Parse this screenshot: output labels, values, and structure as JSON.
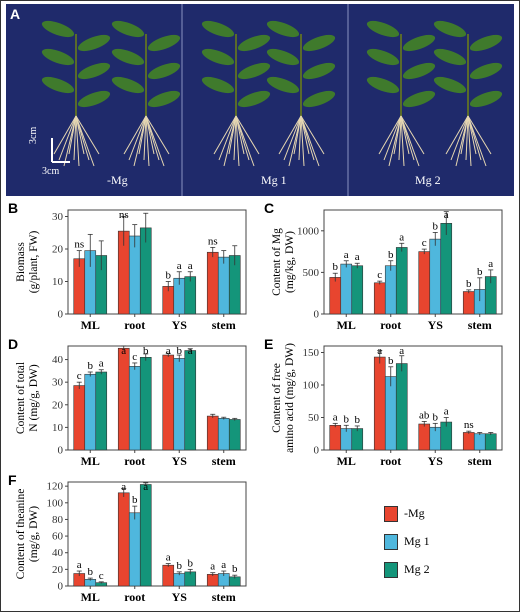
{
  "colors": {
    "mg0": "#e8452f",
    "mg1": "#4fb7dd",
    "mg2": "#14957a",
    "photo_bg": "#1f2a6b"
  },
  "panel_letters": [
    "A",
    "B",
    "C",
    "D",
    "E",
    "F"
  ],
  "photo": {
    "labels": [
      "-Mg",
      "Mg 1",
      "Mg 2"
    ],
    "scale_v": "3cm",
    "scale_h": "3cm"
  },
  "legend": [
    "-Mg",
    "Mg 1",
    "Mg 2"
  ],
  "chart_data": [
    {
      "id": "B",
      "type": "bar",
      "ylabel": [
        "Biomass",
        "(g/plant, FW)"
      ],
      "categories": [
        "ML",
        "root",
        "YS",
        "stem"
      ],
      "ylim": [
        0,
        32
      ],
      "yticks": [
        0,
        10,
        20,
        30
      ],
      "series": [
        {
          "name": "-Mg",
          "values": [
            17,
            25.5,
            8.5,
            19
          ],
          "err": [
            2.5,
            4.5,
            1.5,
            1.5
          ]
        },
        {
          "name": "Mg 1",
          "values": [
            19.5,
            24,
            11,
            17.5
          ],
          "err": [
            5,
            3.5,
            2,
            2
          ]
        },
        {
          "name": "Mg 2",
          "values": [
            18,
            26.5,
            11.5,
            18
          ],
          "err": [
            4.5,
            4.5,
            1.5,
            3
          ]
        }
      ],
      "letters": [
        [
          "ns",
          "",
          ""
        ],
        [
          "ns",
          "",
          ""
        ],
        [
          "b",
          "a",
          "a"
        ],
        [
          "ns",
          "",
          ""
        ]
      ]
    },
    {
      "id": "C",
      "type": "bar",
      "ylabel": [
        "Content of Mg",
        "(mg/kg, DW)"
      ],
      "categories": [
        "ML",
        "root",
        "YS",
        "stem"
      ],
      "ylim": [
        0,
        1250
      ],
      "yticks": [
        0,
        500,
        1000
      ],
      "series": [
        {
          "name": "-Mg",
          "values": [
            440,
            375,
            750,
            270
          ],
          "err": [
            50,
            20,
            30,
            20
          ]
        },
        {
          "name": "Mg 1",
          "values": [
            600,
            580,
            900,
            295
          ],
          "err": [
            40,
            60,
            80,
            140
          ]
        },
        {
          "name": "Mg 2",
          "values": [
            580,
            800,
            1090,
            450
          ],
          "err": [
            30,
            50,
            140,
            80
          ]
        }
      ],
      "letters": [
        [
          "b",
          "a",
          "a"
        ],
        [
          "c",
          "b",
          "a"
        ],
        [
          "c",
          "b",
          "a"
        ],
        [
          "b",
          "b",
          "a"
        ]
      ]
    },
    {
      "id": "D",
      "type": "bar",
      "ylabel": [
        "Content of total",
        "N (mg/g, DW)"
      ],
      "categories": [
        "ML",
        "root",
        "YS",
        "stem"
      ],
      "ylim": [
        0,
        46
      ],
      "yticks": [
        0,
        10,
        20,
        30,
        40
      ],
      "series": [
        {
          "name": "-Mg",
          "values": [
            28.5,
            45,
            42,
            15
          ],
          "err": [
            1.5,
            1,
            0.8,
            0.8
          ]
        },
        {
          "name": "Mg 1",
          "values": [
            33.5,
            37,
            40.5,
            14
          ],
          "err": [
            1,
            1.5,
            1.5,
            0.5
          ]
        },
        {
          "name": "Mg 2",
          "values": [
            34.5,
            41,
            44,
            13.5
          ],
          "err": [
            1,
            1.5,
            0.8,
            0.5
          ]
        }
      ],
      "letters": [
        [
          "c",
          "b",
          "a"
        ],
        [
          "a",
          "c",
          "b"
        ],
        [
          "a",
          "b",
          "a"
        ],
        [
          "",
          "",
          ""
        ]
      ]
    },
    {
      "id": "E",
      "type": "bar",
      "ylabel": [
        "Content of free",
        "amino acid (mg/g, DW)"
      ],
      "categories": [
        "ML",
        "root",
        "YS",
        "stem"
      ],
      "ylim": [
        0,
        160
      ],
      "yticks": [
        0,
        50,
        100,
        150
      ],
      "series": [
        {
          "name": "-Mg",
          "values": [
            38,
            143,
            40,
            27
          ],
          "err": [
            3,
            10,
            4,
            2
          ]
        },
        {
          "name": "Mg 1",
          "values": [
            33,
            113,
            35,
            25
          ],
          "err": [
            5,
            15,
            6,
            2
          ]
        },
        {
          "name": "Mg 2",
          "values": [
            33,
            133,
            43,
            25
          ],
          "err": [
            4,
            12,
            7,
            2
          ]
        }
      ],
      "letters": [
        [
          "a",
          "b",
          "b"
        ],
        [
          "a",
          "b",
          "a"
        ],
        [
          "ab",
          "b",
          "a"
        ],
        [
          "ns",
          "",
          ""
        ]
      ]
    },
    {
      "id": "F",
      "type": "bar",
      "ylabel": [
        "Content of theanine",
        "(mg/g, DW)"
      ],
      "categories": [
        "ML",
        "root",
        "YS",
        "stem"
      ],
      "ylim": [
        0,
        125
      ],
      "yticks": [
        0,
        20,
        40,
        60,
        80,
        100,
        120
      ],
      "series": [
        {
          "name": "-Mg",
          "values": [
            15,
            112,
            25,
            14
          ],
          "err": [
            3,
            5,
            2,
            2
          ]
        },
        {
          "name": "Mg 1",
          "values": [
            8,
            88,
            15,
            15
          ],
          "err": [
            1.5,
            8,
            2,
            3
          ]
        },
        {
          "name": "Mg 2",
          "values": [
            4,
            122,
            17,
            11
          ],
          "err": [
            1,
            2,
            3,
            2
          ]
        }
      ],
      "letters": [
        [
          "a",
          "b",
          "c"
        ],
        [
          "a",
          "b",
          "a"
        ],
        [
          "a",
          "b",
          "b"
        ],
        [
          "a",
          "a",
          "b"
        ]
      ]
    }
  ]
}
